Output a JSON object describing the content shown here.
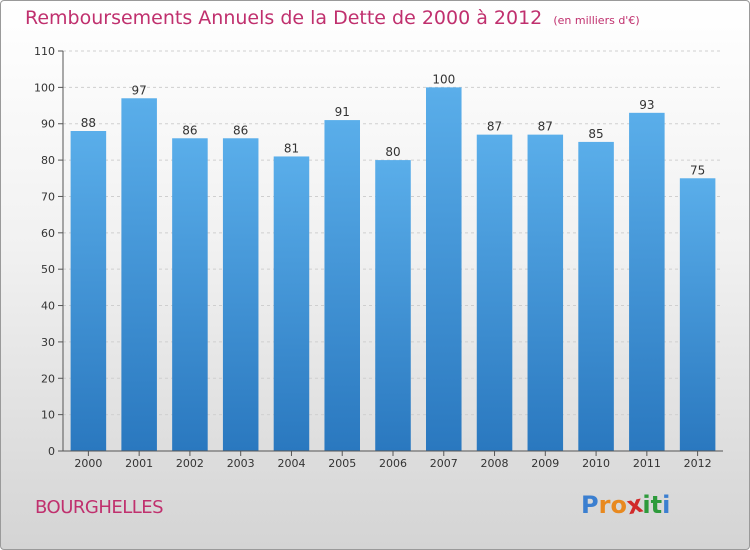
{
  "header": {
    "title": "Remboursements Annuels de la Dette de 2000 à 2012",
    "subtitle": "(en milliers d'€)"
  },
  "footer": {
    "commune": "BOURGHELLES",
    "logo_text": "Proxiti"
  },
  "colors": {
    "title": "#c0306e",
    "bar_top": "#5aaeea",
    "bar_bottom": "#2a78bf",
    "logo_letters": [
      "#3b7fd0",
      "#e8891f",
      "#e8891f",
      "#d12a2a",
      "#2e9b3c",
      "#2e9b3c",
      "#3b7fd0"
    ]
  },
  "chart_data": {
    "type": "bar",
    "title": "Remboursements Annuels de la Dette de 2000 à 2012",
    "subtitle": "(en milliers d'€)",
    "categories": [
      "2000",
      "2001",
      "2002",
      "2003",
      "2004",
      "2005",
      "2006",
      "2007",
      "2008",
      "2009",
      "2010",
      "2011",
      "2012"
    ],
    "values": [
      88,
      97,
      86,
      86,
      81,
      91,
      80,
      100,
      87,
      87,
      85,
      93,
      75
    ],
    "ylim": [
      0,
      110
    ],
    "yticks": [
      0,
      10,
      20,
      30,
      40,
      50,
      60,
      70,
      80,
      90,
      100,
      110
    ],
    "grid": true,
    "data_labels": true
  }
}
